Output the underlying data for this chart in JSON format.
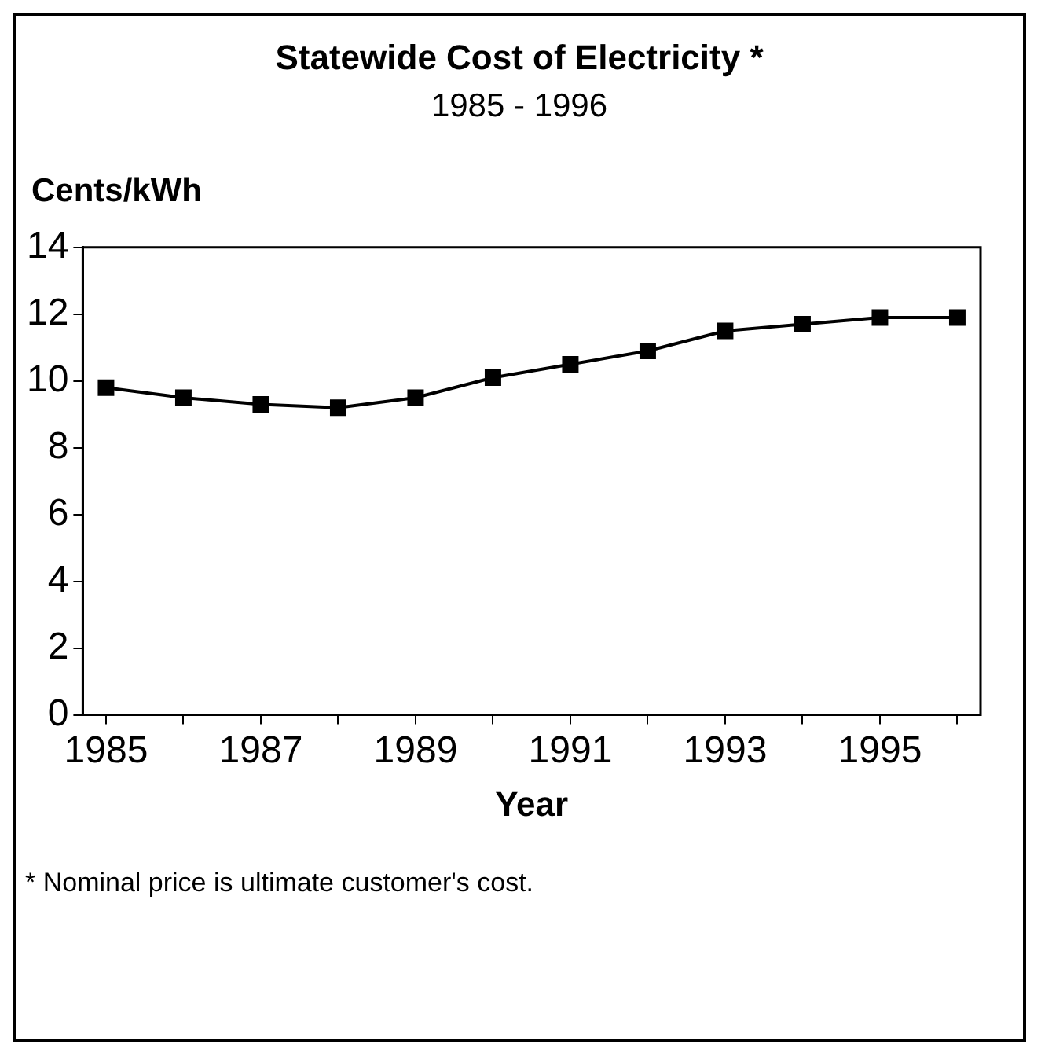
{
  "chart_data": {
    "type": "line",
    "title": "Statewide Cost of Electricity *",
    "subtitle": "1985 - 1996",
    "ylabel": "Cents/kWh",
    "xlabel": "Year",
    "annotations": [
      "* Nominal price is ultimate customer's cost."
    ],
    "x": [
      1985,
      1986,
      1987,
      1988,
      1989,
      1990,
      1991,
      1992,
      1993,
      1994,
      1995,
      1996
    ],
    "series": [
      {
        "color": "#000000",
        "values": [
          9.8,
          9.5,
          9.3,
          9.2,
          9.5,
          10.1,
          10.5,
          10.9,
          11.5,
          11.7,
          11.9,
          11.9
        ]
      }
    ],
    "xlim": [
      1984.7,
      1996.3
    ],
    "xticks": [
      1985,
      {
        "value": 1986,
        "label": null
      },
      1987,
      {
        "value": 1988,
        "label": null
      },
      1989,
      {
        "value": 1990,
        "label": null
      },
      1991,
      {
        "value": 1992,
        "label": null
      },
      1993,
      {
        "value": 1994,
        "label": null
      },
      1995,
      {
        "value": 1996,
        "label": null
      }
    ],
    "ylim": [
      0,
      14
    ],
    "yticks": [
      0,
      2,
      4,
      6,
      8,
      10,
      12,
      14
    ],
    "marker": "square",
    "line_style": "solid",
    "grid": false,
    "legend": false
  }
}
